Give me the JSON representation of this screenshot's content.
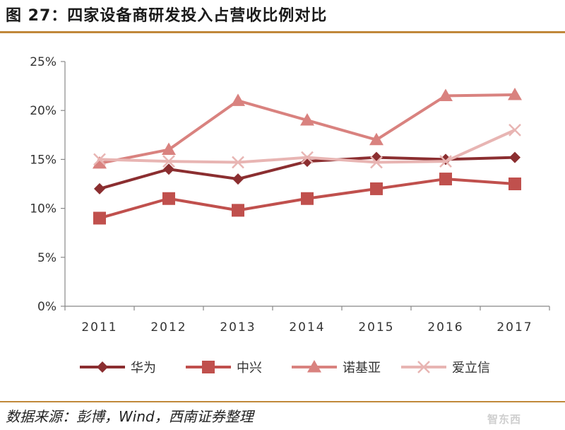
{
  "figure": {
    "title": "图 27：四家设备商研发投入占营收比例对比",
    "source": "数据来源：彭博，Wind，西南证券整理"
  },
  "watermark": {
    "text": "智东西"
  },
  "chart_data": {
    "type": "line",
    "categories": [
      "2011",
      "2012",
      "2013",
      "2014",
      "2015",
      "2016",
      "2017"
    ],
    "ylim": [
      0,
      25
    ],
    "yticks": [
      0,
      5,
      10,
      15,
      20,
      25
    ],
    "ytick_labels": [
      "0%",
      "5%",
      "10%",
      "15%",
      "20%",
      "25%"
    ],
    "legend_position": "bottom",
    "grid": false,
    "series": [
      {
        "name": "华为",
        "marker": "diamond",
        "color": "#8b2e30",
        "values": [
          12.0,
          14.0,
          13.0,
          14.8,
          15.2,
          15.0,
          15.2
        ]
      },
      {
        "name": "中兴",
        "marker": "square",
        "color": "#c0504d",
        "values": [
          9.0,
          11.0,
          9.8,
          11.0,
          12.0,
          13.0,
          12.5
        ]
      },
      {
        "name": "诺基亚",
        "marker": "triangle",
        "color": "#d9827f",
        "values": [
          14.6,
          16.0,
          21.0,
          19.0,
          17.0,
          21.5,
          21.6
        ]
      },
      {
        "name": "爱立信",
        "marker": "x",
        "color": "#e8b5b3",
        "values": [
          15.0,
          14.8,
          14.7,
          15.2,
          14.7,
          14.8,
          18.0
        ]
      }
    ]
  }
}
